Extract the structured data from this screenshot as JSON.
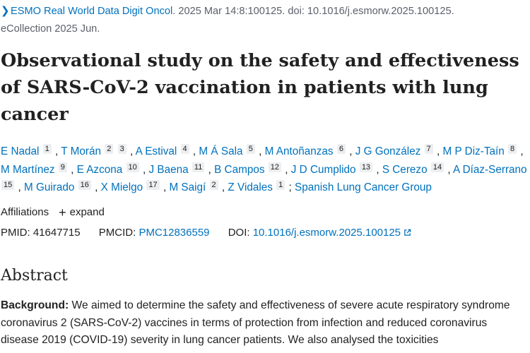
{
  "citation": {
    "chevron_icon": "chevron-right-icon",
    "journal": "ESMO Real World Data Digit Oncol",
    "details": ". 2025 Mar 14:8:100125. doi: 10.1016/j.esmorw.2025.100125.",
    "line2": "eCollection 2025 Jun."
  },
  "title": "Observational study on the safety and effectiveness of SARS-CoV-2 vaccination in patients with lung cancer",
  "authors": [
    {
      "name": "E Nadal",
      "aff": [
        "1"
      ]
    },
    {
      "name": "T Morán",
      "aff": [
        "2",
        "3"
      ]
    },
    {
      "name": "A Estival",
      "aff": [
        "4"
      ]
    },
    {
      "name": "M Á Sala",
      "aff": [
        "5"
      ]
    },
    {
      "name": "M Antoñanzas",
      "aff": [
        "6"
      ]
    },
    {
      "name": "J G González",
      "aff": [
        "7"
      ]
    },
    {
      "name": "M P Diz-Taín",
      "aff": [
        "8"
      ]
    },
    {
      "name": "M Martínez",
      "aff": [
        "9"
      ]
    },
    {
      "name": "E Azcona",
      "aff": [
        "10"
      ]
    },
    {
      "name": "J Baena",
      "aff": [
        "11"
      ]
    },
    {
      "name": "B Campos",
      "aff": [
        "12"
      ]
    },
    {
      "name": "J D Cumplido",
      "aff": [
        "13"
      ]
    },
    {
      "name": "S Cerezo",
      "aff": [
        "14"
      ]
    },
    {
      "name": "A Díaz-Serrano",
      "aff": [
        "15"
      ]
    },
    {
      "name": "M Guirado",
      "aff": [
        "16"
      ]
    },
    {
      "name": "X Mielgo",
      "aff": [
        "17"
      ]
    },
    {
      "name": "M Saigí",
      "aff": [
        "2"
      ]
    },
    {
      "name": "Z Vidales",
      "aff": [
        "1"
      ]
    }
  ],
  "group": "Spanish Lung Cancer Group",
  "affiliations": {
    "label": "Affiliations",
    "expand_label": "expand",
    "plus_icon": "plus-icon"
  },
  "ids": {
    "pmid_label": "PMID:",
    "pmid": "41647715",
    "pmcid_label": "PMCID:",
    "pmcid": "PMC12836559",
    "doi_label": "DOI:",
    "doi": "10.1016/j.esmorw.2025.100125",
    "external_icon": "external-link-icon"
  },
  "abstract": {
    "heading": "Abstract",
    "background_label": "Background:",
    "background_text": " We aimed to determine the safety and effectiveness of severe acute respiratory syndrome coronavirus 2 (SARS-CoV-2) vaccines in terms of protection from infection and reduced coronavirus disease 2019 (COVID-19) severity in lung cancer patients. We also analysed the toxicities"
  },
  "colors": {
    "link": "#0071bc",
    "text": "#212121",
    "muted": "#5b616b",
    "badge": "#eceef0"
  }
}
